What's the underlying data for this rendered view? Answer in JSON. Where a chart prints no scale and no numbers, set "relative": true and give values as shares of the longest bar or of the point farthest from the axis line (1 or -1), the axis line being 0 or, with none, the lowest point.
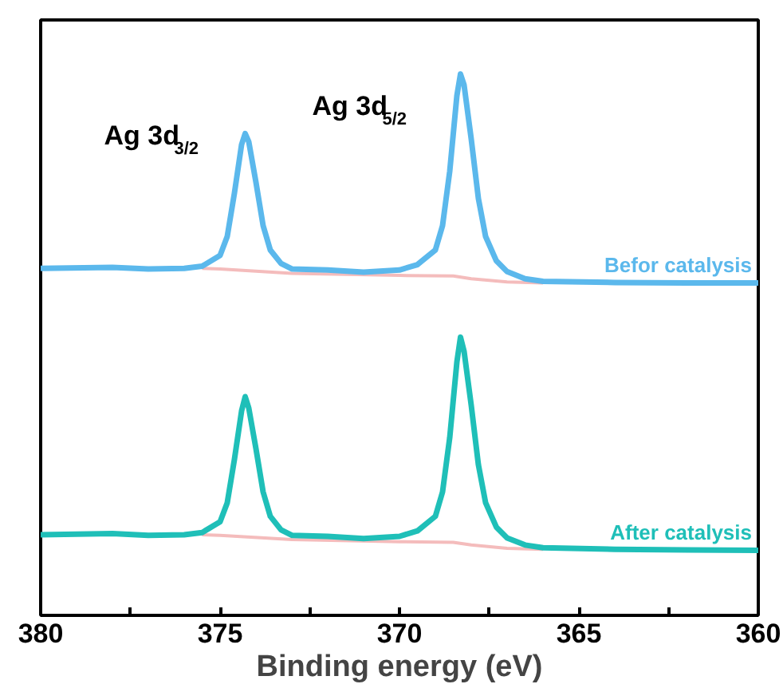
{
  "chart_data": {
    "type": "line",
    "relative": true,
    "xlabel": "Binding energy (eV)",
    "xlim": [
      380,
      360
    ],
    "xticks": [
      380,
      {
        "value": 377.5,
        "label": null
      },
      375,
      {
        "value": 372.5,
        "label": null
      },
      370,
      {
        "value": 367.5,
        "label": null
      },
      365,
      {
        "value": 362.5,
        "label": null
      },
      360
    ],
    "grid": false,
    "legend": false,
    "marker": "none",
    "line_style": "solid",
    "annotations": [
      "Ag 3d$_{3/2}$",
      "Ag 3d$_{5/2}$"
    ],
    "series": [
      {
        "color": "#f4bcbc",
        "x": [
          375.5,
          375,
          373,
          370,
          368.5,
          368,
          367,
          366
        ],
        "values": [
          0.641,
          0.64,
          0.632,
          0.628,
          0.627,
          0.622,
          0.616,
          0.614
        ]
      },
      {
        "color": "#f4bcbc",
        "x": [
          375.5,
          375,
          373,
          370,
          368.5,
          368,
          367,
          366
        ],
        "values": [
          0.149,
          0.148,
          0.14,
          0.136,
          0.135,
          0.13,
          0.124,
          0.122
        ]
      },
      {
        "name": "Befor catalysis",
        "color": "#5bb8ec",
        "x": [
          380,
          378,
          377,
          376,
          375.5,
          375,
          374.8,
          374.6,
          374.4,
          374.3,
          374.2,
          374,
          373.8,
          373.6,
          373.3,
          373,
          372,
          371,
          370,
          369.5,
          369,
          368.8,
          368.6,
          368.4,
          368.3,
          368.2,
          368,
          367.8,
          367.6,
          367.3,
          367,
          366.5,
          366,
          364,
          362,
          360
        ],
        "values": [
          0.641,
          0.643,
          0.64,
          0.641,
          0.645,
          0.665,
          0.7,
          0.78,
          0.87,
          0.89,
          0.875,
          0.8,
          0.72,
          0.675,
          0.65,
          0.64,
          0.638,
          0.634,
          0.638,
          0.648,
          0.675,
          0.72,
          0.82,
          0.96,
          1.0,
          0.98,
          0.88,
          0.77,
          0.7,
          0.655,
          0.635,
          0.622,
          0.617,
          0.615,
          0.614,
          0.614
        ]
      },
      {
        "name": "After catalysis",
        "color": "#1fbfb8",
        "x": [
          380,
          378,
          377,
          376,
          375.5,
          375,
          374.8,
          374.6,
          374.4,
          374.3,
          374.2,
          374,
          373.8,
          373.6,
          373.3,
          373,
          372,
          371,
          370,
          369.5,
          369,
          368.8,
          368.6,
          368.4,
          368.3,
          368.2,
          368,
          367.8,
          367.6,
          367.3,
          367,
          366.5,
          366,
          364,
          362,
          360
        ],
        "values": [
          0.149,
          0.151,
          0.148,
          0.149,
          0.153,
          0.173,
          0.208,
          0.288,
          0.378,
          0.404,
          0.383,
          0.308,
          0.228,
          0.183,
          0.158,
          0.148,
          0.146,
          0.142,
          0.146,
          0.156,
          0.183,
          0.228,
          0.328,
          0.468,
          0.514,
          0.488,
          0.388,
          0.278,
          0.208,
          0.163,
          0.143,
          0.13,
          0.125,
          0.122,
          0.121,
          0.12
        ]
      }
    ]
  }
}
